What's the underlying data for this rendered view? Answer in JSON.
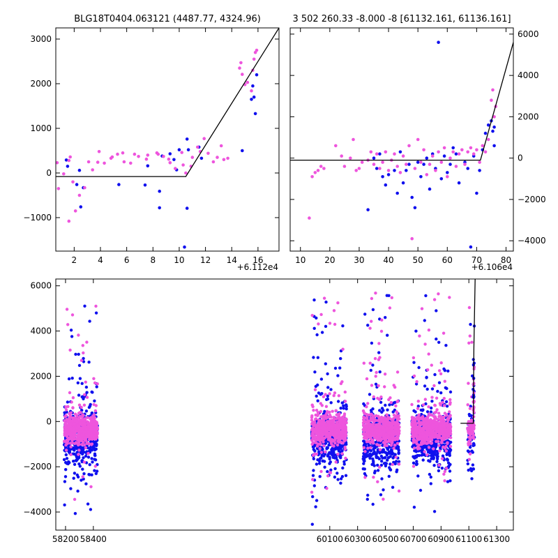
{
  "chart_data": [
    {
      "id": "topleft",
      "type": "scatter",
      "title": "BLG18T0404.063121 (4487.77, 4324.96)",
      "xlim": [
        0.6,
        17.6
      ],
      "ylim": [
        -1750,
        3250
      ],
      "xticks": [
        2,
        4,
        6,
        8,
        10,
        12,
        14,
        16
      ],
      "yticks": [
        -1000,
        0,
        1000,
        2000,
        3000
      ],
      "yaxis_side": "left",
      "offset_label": "+6.112e4",
      "colors": {
        "series_a": "#1010ee",
        "series_b": "#ee55dd",
        "model": "#000000"
      },
      "model_line": [
        [
          0.6,
          -80
        ],
        [
          10.5,
          -80
        ],
        [
          17.6,
          3250
        ]
      ],
      "series": [
        {
          "name": "",
          "color": "#1010ee",
          "points": [
            [
              1.4,
              290
            ],
            [
              1.5,
              150
            ],
            [
              2.2,
              -260
            ],
            [
              2.4,
              60
            ],
            [
              2.5,
              -760
            ],
            [
              2.7,
              -330
            ],
            [
              5.4,
              -260
            ],
            [
              7.4,
              -270
            ],
            [
              7.6,
              160
            ],
            [
              8.5,
              -410
            ],
            [
              8.5,
              -780
            ],
            [
              8.7,
              380
            ],
            [
              9.3,
              430
            ],
            [
              9.6,
              300
            ],
            [
              9.8,
              70
            ],
            [
              10.0,
              520
            ],
            [
              10.4,
              -1660
            ],
            [
              10.6,
              -790
            ],
            [
              10.6,
              760
            ],
            [
              10.7,
              520
            ],
            [
              11.5,
              580
            ],
            [
              11.7,
              330
            ],
            [
              14.8,
              500
            ],
            [
              15.5,
              1650
            ],
            [
              15.6,
              1950
            ],
            [
              15.7,
              1700
            ],
            [
              15.8,
              1330
            ],
            [
              15.9,
              2200
            ]
          ]
        },
        {
          "name": "",
          "color": "#ee55dd",
          "points": [
            [
              0.7,
              230
            ],
            [
              0.8,
              -350
            ],
            [
              1.2,
              -20
            ],
            [
              1.6,
              280
            ],
            [
              1.6,
              -1080
            ],
            [
              1.7,
              360
            ],
            [
              1.9,
              -200
            ],
            [
              2.1,
              -850
            ],
            [
              2.4,
              -500
            ],
            [
              2.8,
              -330
            ],
            [
              3.1,
              250
            ],
            [
              3.4,
              70
            ],
            [
              3.8,
              240
            ],
            [
              3.9,
              480
            ],
            [
              4.3,
              220
            ],
            [
              4.8,
              330
            ],
            [
              4.9,
              360
            ],
            [
              5.3,
              420
            ],
            [
              5.7,
              450
            ],
            [
              5.8,
              250
            ],
            [
              6.3,
              220
            ],
            [
              6.6,
              420
            ],
            [
              6.9,
              370
            ],
            [
              7.5,
              310
            ],
            [
              7.6,
              400
            ],
            [
              8.3,
              450
            ],
            [
              8.4,
              420
            ],
            [
              8.8,
              370
            ],
            [
              9.2,
              310
            ],
            [
              9.3,
              230
            ],
            [
              9.7,
              100
            ],
            [
              10.2,
              460
            ],
            [
              10.3,
              180
            ],
            [
              10.5,
              0
            ],
            [
              10.9,
              150
            ],
            [
              11.0,
              350
            ],
            [
              11.4,
              580
            ],
            [
              11.6,
              480
            ],
            [
              11.9,
              770
            ],
            [
              12.2,
              440
            ],
            [
              12.6,
              250
            ],
            [
              12.9,
              350
            ],
            [
              13.2,
              610
            ],
            [
              13.4,
              300
            ],
            [
              13.7,
              330
            ],
            [
              14.6,
              2350
            ],
            [
              14.7,
              2470
            ],
            [
              14.8,
              2210
            ],
            [
              15.0,
              1980
            ],
            [
              15.2,
              2030
            ],
            [
              15.5,
              1840
            ],
            [
              15.6,
              2300
            ],
            [
              15.7,
              2550
            ],
            [
              15.8,
              2700
            ],
            [
              15.9,
              2750
            ]
          ]
        }
      ]
    },
    {
      "id": "topright",
      "type": "scatter",
      "title": "3 502 260.33 -8.000 -8 [61132.161, 61136.161]",
      "xlim": [
        6.5,
        82.5
      ],
      "ylim": [
        -4500,
        6300
      ],
      "xticks": [
        10,
        20,
        30,
        40,
        50,
        60,
        70,
        80
      ],
      "yticks": [
        -4000,
        -2000,
        0,
        2000,
        4000,
        6000
      ],
      "yaxis_side": "right",
      "offset_label": "+6.106e4",
      "colors": {
        "series_a": "#1010ee",
        "series_b": "#ee55dd",
        "model": "#000000"
      },
      "model_line": [
        [
          6.5,
          -100
        ],
        [
          71.3,
          -100
        ],
        [
          82.5,
          5600
        ]
      ],
      "series": [
        {
          "name": "",
          "color": "#1010ee",
          "points": [
            [
              33,
              -2500
            ],
            [
              35,
              0
            ],
            [
              36,
              -500
            ],
            [
              37,
              200
            ],
            [
              38,
              -900
            ],
            [
              39,
              -1300
            ],
            [
              40,
              -800
            ],
            [
              42,
              -600
            ],
            [
              43,
              -1700
            ],
            [
              44,
              300
            ],
            [
              45,
              -1200
            ],
            [
              46,
              -600
            ],
            [
              47,
              -300
            ],
            [
              48,
              -1900
            ],
            [
              49,
              -2400
            ],
            [
              50,
              -200
            ],
            [
              51,
              -900
            ],
            [
              52,
              -300
            ],
            [
              53,
              0
            ],
            [
              54,
              -1500
            ],
            [
              55,
              200
            ],
            [
              56,
              -500
            ],
            [
              57,
              5600
            ],
            [
              58,
              -1000
            ],
            [
              59,
              100
            ],
            [
              60,
              -700
            ],
            [
              61,
              -300
            ],
            [
              62,
              500
            ],
            [
              63,
              200
            ],
            [
              64,
              -1200
            ],
            [
              66,
              -200
            ],
            [
              67,
              -500
            ],
            [
              68,
              -4300
            ],
            [
              69,
              100
            ],
            [
              70,
              -1700
            ],
            [
              71,
              -600
            ],
            [
              72,
              400
            ],
            [
              73,
              1200
            ],
            [
              74,
              1600
            ],
            [
              75,
              1800
            ],
            [
              75.5,
              1300
            ],
            [
              76,
              1500
            ],
            [
              76,
              600
            ]
          ]
        },
        {
          "name": "",
          "color": "#ee55dd",
          "points": [
            [
              13,
              -2900
            ],
            [
              14,
              -900
            ],
            [
              15,
              -700
            ],
            [
              16,
              -600
            ],
            [
              17,
              -400
            ],
            [
              18,
              -500
            ],
            [
              22,
              600
            ],
            [
              24,
              100
            ],
            [
              25,
              -400
            ],
            [
              27,
              0
            ],
            [
              28,
              900
            ],
            [
              29,
              -600
            ],
            [
              30,
              -500
            ],
            [
              31,
              -200
            ],
            [
              33,
              -100
            ],
            [
              34,
              300
            ],
            [
              35,
              -300
            ],
            [
              36,
              200
            ],
            [
              37,
              -500
            ],
            [
              38,
              -200
            ],
            [
              39,
              300
            ],
            [
              40,
              -600
            ],
            [
              41,
              -100
            ],
            [
              42,
              200
            ],
            [
              43,
              -400
            ],
            [
              44,
              -700
            ],
            [
              45,
              100
            ],
            [
              46,
              -300
            ],
            [
              47,
              600
            ],
            [
              48,
              -3900
            ],
            [
              49,
              -500
            ],
            [
              50,
              900
            ],
            [
              51,
              -200
            ],
            [
              52,
              400
            ],
            [
              53,
              -800
            ],
            [
              54,
              -300
            ],
            [
              55,
              100
            ],
            [
              56,
              -600
            ],
            [
              57,
              300
            ],
            [
              58,
              -200
            ],
            [
              59,
              500
            ],
            [
              60,
              -900
            ],
            [
              61,
              0
            ],
            [
              62,
              300
            ],
            [
              63,
              -400
            ],
            [
              64,
              200
            ],
            [
              65,
              400
            ],
            [
              66,
              -300
            ],
            [
              67,
              300
            ],
            [
              68,
              500
            ],
            [
              69,
              200
            ],
            [
              70,
              400
            ],
            [
              71,
              -200
            ],
            [
              72,
              600
            ],
            [
              73,
              300
            ],
            [
              74,
              900
            ],
            [
              75,
              2800
            ],
            [
              75.5,
              3300
            ],
            [
              76,
              2000
            ],
            [
              76.5,
              2500
            ]
          ]
        }
      ]
    },
    {
      "id": "bottom",
      "type": "scatter",
      "title": "",
      "xlim": [
        58130,
        61420
      ],
      "ylim": [
        -4800,
        6300
      ],
      "xticks": [
        58200,
        58400,
        60100,
        60300,
        60500,
        60700,
        60900,
        61100,
        61300
      ],
      "yticks": [
        -4000,
        -2000,
        0,
        2000,
        4000,
        6000
      ],
      "yaxis_side": "left",
      "offset_label": "",
      "colors": {
        "series_a": "#1010ee",
        "series_b": "#ee55dd",
        "model": "#000000"
      },
      "model_line": [
        [
          61040,
          -80
        ],
        [
          61132,
          -80
        ],
        [
          61136,
          3250
        ],
        [
          61145,
          6300
        ]
      ],
      "seasons": [
        {
          "xmin": 58190,
          "xmax": 58430,
          "seed": 11
        },
        {
          "xmin": 59970,
          "xmax": 60220,
          "seed": 23
        },
        {
          "xmin": 60340,
          "xmax": 60600,
          "seed": 37
        },
        {
          "xmin": 60690,
          "xmax": 60970,
          "seed": 41
        },
        {
          "xmin": 61090,
          "xmax": 61140,
          "seed": 53
        }
      ]
    }
  ]
}
